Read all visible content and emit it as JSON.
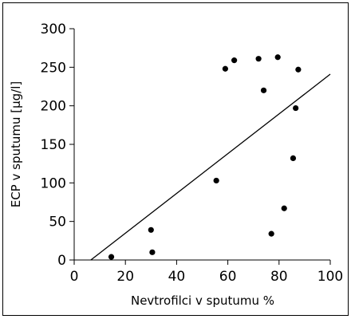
{
  "chart_data": {
    "type": "scatter",
    "xlabel": "Nevtrofilci v sputumu %",
    "ylabel": "ECP v sputumu [µg/l]",
    "xlim": [
      0,
      100
    ],
    "ylim": [
      0,
      300
    ],
    "xticks": [
      "0",
      "20",
      "40",
      "60",
      "80",
      "100"
    ],
    "yticks": [
      "0",
      "50",
      "100",
      "150",
      "200",
      "250",
      "300"
    ],
    "grid": false,
    "series": [
      {
        "points": [
          {
            "x": 14.5,
            "y": 4
          },
          {
            "x": 30,
            "y": 39
          },
          {
            "x": 30.5,
            "y": 10
          },
          {
            "x": 55.5,
            "y": 103
          },
          {
            "x": 59,
            "y": 248
          },
          {
            "x": 62.5,
            "y": 259
          },
          {
            "x": 72,
            "y": 261
          },
          {
            "x": 74,
            "y": 220
          },
          {
            "x": 77,
            "y": 34
          },
          {
            "x": 79.5,
            "y": 263
          },
          {
            "x": 82,
            "y": 67
          },
          {
            "x": 85.5,
            "y": 132
          },
          {
            "x": 86.5,
            "y": 197
          },
          {
            "x": 87.5,
            "y": 247
          }
        ]
      }
    ],
    "trendline": {
      "x": [
        6.5,
        100
      ],
      "y": [
        0,
        241
      ]
    },
    "colors": {
      "marker": "#000000",
      "line": "#000000",
      "axis": "#000000"
    }
  }
}
